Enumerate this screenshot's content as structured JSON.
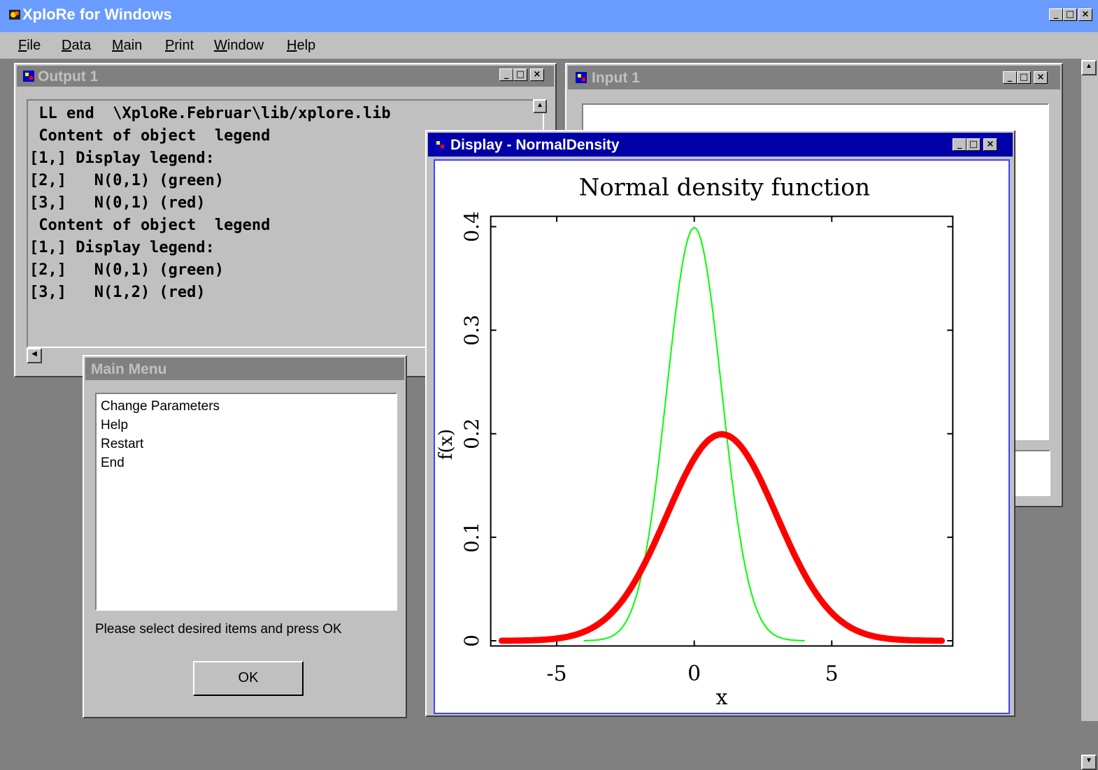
{
  "app": {
    "title": "XploRe for Windows",
    "icon": "xplore-app-icon",
    "controls": [
      "_",
      "□",
      "×"
    ]
  },
  "menubar": [
    {
      "u": "F",
      "rest": "ile"
    },
    {
      "u": "D",
      "rest": "ata"
    },
    {
      "u": "M",
      "rest": "ain"
    },
    {
      "u": "P",
      "rest": "rint"
    },
    {
      "u": "W",
      "rest": "indow"
    },
    {
      "u": "H",
      "rest": "elp"
    }
  ],
  "output_window": {
    "title": "Output 1",
    "lines": [
      " LL end  \\XploRe.Februar\\lib/xplore.lib",
      " Content of object  legend",
      "[1,] Display legend:",
      "[2,]   N(0,1) (green)",
      "[3,]   N(0,1) (red)",
      " Content of object  legend",
      "[1,] Display legend:",
      "[2,]   N(0,1) (green)",
      "[3,]   N(1,2) (red)"
    ]
  },
  "input_window": {
    "title": "Input 1"
  },
  "main_menu": {
    "title": "Main Menu",
    "items": [
      "Change Parameters",
      "Help",
      "Restart",
      "End"
    ],
    "instruction": "Please select desired items and press OK",
    "ok_label": "OK"
  },
  "display_window": {
    "title": "Display - NormalDensity"
  },
  "chart_data": {
    "type": "line",
    "title": "Normal density function",
    "xlabel": "x",
    "ylabel": "f(x)",
    "xlim": [
      -7.4,
      9.4
    ],
    "ylim": [
      -0.005,
      0.41
    ],
    "xticks": [
      -5,
      0,
      5
    ],
    "xtick_labels": [
      "-5",
      "0",
      "5"
    ],
    "yticks": [
      0,
      0.1,
      0.2,
      0.3,
      0.4
    ],
    "ytick_labels": [
      "0",
      "0.1",
      "0.2",
      "0.3",
      "0.4"
    ],
    "series": [
      {
        "color": "#00ff00",
        "mean": 0,
        "sd": 1,
        "x_range": [
          -4,
          4
        ],
        "stroke": "thin",
        "values_note_x": [
          -4,
          -3,
          -2,
          -1,
          0,
          1,
          2,
          3,
          4
        ],
        "values": [
          0.0001,
          0.0044,
          0.054,
          0.242,
          0.399,
          0.242,
          0.054,
          0.0044,
          0.0001
        ]
      },
      {
        "color": "#ff0000",
        "mean": 1,
        "sd": 2,
        "x_range": [
          -7,
          9
        ],
        "stroke": "thick",
        "values_note_x": [
          -7,
          -5,
          -3,
          -1,
          1,
          3,
          5,
          7,
          9
        ],
        "values": [
          0.0001,
          0.0022,
          0.027,
          0.121,
          0.199,
          0.121,
          0.027,
          0.0022,
          0.0001
        ]
      }
    ],
    "grid": false
  }
}
